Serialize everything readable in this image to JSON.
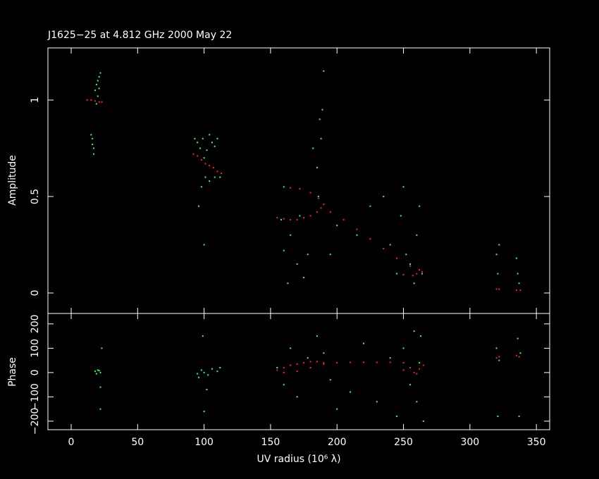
{
  "chart_data": [
    {
      "type": "scatter",
      "title": "J1625−25 at 4.812 GHz 2000 May 22",
      "ylabel": "Amplitude",
      "xlim": [
        -17.5,
        360
      ],
      "xticks": [
        0,
        50,
        100,
        150,
        200,
        250,
        300,
        350
      ],
      "ylim": [
        -0.106,
        1.27
      ],
      "yticks": [
        0,
        0.5,
        1
      ],
      "series": [
        {
          "color": "#33ff66",
          "x": [
            18,
            19,
            20,
            21,
            22,
            20,
            19,
            21,
            16,
            16,
            17,
            15,
            17,
            93,
            95,
            97,
            99,
            100,
            102,
            104,
            106,
            108,
            110,
            112,
            98,
            101,
            96,
            104,
            108,
            100,
            158,
            160,
            165,
            170,
            172,
            178,
            182,
            185,
            187,
            189,
            190,
            188,
            186,
            175,
            195,
            200,
            160,
            163,
            215,
            225,
            235,
            240,
            248,
            252,
            255,
            258,
            260,
            262,
            264,
            250,
            245,
            320,
            321,
            322,
            335,
            336,
            337
          ],
          "values": [
            1.05,
            1.08,
            1.1,
            1.12,
            1.14,
            1.02,
            0.98,
            1.06,
            0.8,
            0.77,
            0.75,
            0.82,
            0.72,
            0.8,
            0.78,
            0.75,
            0.8,
            0.7,
            0.74,
            0.82,
            0.78,
            0.76,
            0.8,
            0.6,
            0.55,
            0.6,
            0.45,
            0.58,
            0.6,
            0.25,
            0.38,
            0.22,
            0.3,
            0.15,
            0.4,
            0.2,
            0.75,
            0.65,
            0.9,
            0.95,
            1.15,
            0.8,
            0.5,
            0.08,
            0.2,
            0.35,
            0.55,
            0.05,
            0.3,
            0.45,
            0.5,
            0.25,
            0.4,
            0.2,
            0.15,
            0.05,
            0.3,
            0.45,
            0.1,
            0.55,
            0.1,
            0.2,
            0.1,
            0.25,
            0.18,
            0.1,
            0.05
          ]
        },
        {
          "color": "#ff2020",
          "x": [
            12,
            15,
            18,
            21,
            23,
            92,
            95,
            98,
            101,
            104,
            107,
            110,
            113,
            155,
            160,
            165,
            170,
            175,
            180,
            185,
            188,
            190,
            186,
            180,
            172,
            165,
            195,
            205,
            215,
            225,
            235,
            245,
            255,
            262,
            264,
            260,
            250,
            257,
            320,
            322,
            335,
            338
          ],
          "values": [
            1.0,
            1.0,
            0.995,
            0.99,
            0.99,
            0.72,
            0.71,
            0.69,
            0.67,
            0.66,
            0.65,
            0.63,
            0.62,
            0.39,
            0.385,
            0.38,
            0.38,
            0.39,
            0.4,
            0.42,
            0.44,
            0.46,
            0.49,
            0.52,
            0.54,
            0.545,
            0.42,
            0.38,
            0.33,
            0.28,
            0.23,
            0.18,
            0.14,
            0.12,
            0.11,
            0.1,
            0.095,
            0.09,
            0.02,
            0.02,
            0.015,
            0.015
          ]
        }
      ]
    },
    {
      "type": "scatter",
      "ylabel": "Phase",
      "xlabel": "UV radius  (10⁶ λ)",
      "xlim": [
        -17.5,
        360
      ],
      "xticks": [
        0,
        50,
        100,
        150,
        200,
        250,
        300,
        350
      ],
      "ylim": [
        -235,
        243
      ],
      "yticks": [
        {
          "value": -200,
          "label": "−200"
        },
        {
          "value": -100,
          "label": "−100"
        },
        0,
        100,
        200
      ],
      "series": [
        {
          "color": "#33ff66",
          "x": [
            18,
            20,
            22,
            21,
            19,
            23,
            22,
            22,
            95,
            98,
            100,
            103,
            106,
            110,
            112,
            96,
            99,
            100,
            102,
            155,
            160,
            165,
            170,
            178,
            185,
            190,
            195,
            200,
            210,
            220,
            230,
            240,
            245,
            250,
            255,
            258,
            260,
            262,
            265,
            263,
            320,
            321,
            322,
            336,
            337,
            338
          ],
          "values": [
            5,
            10,
            0,
            8,
            -5,
            100,
            -60,
            -150,
            -5,
            10,
            0,
            -10,
            15,
            5,
            20,
            -20,
            150,
            -160,
            -70,
            20,
            -50,
            100,
            -100,
            60,
            150,
            80,
            -30,
            -150,
            -80,
            120,
            -120,
            60,
            -180,
            100,
            -50,
            170,
            -120,
            40,
            -200,
            150,
            100,
            -180,
            50,
            140,
            -180,
            80
          ]
        },
        {
          "color": "#ff2020",
          "x": [
            155,
            160,
            165,
            170,
            175,
            180,
            185,
            190,
            160,
            170,
            180,
            190,
            200,
            210,
            220,
            230,
            240,
            250,
            255,
            258,
            260,
            262,
            265,
            250,
            320,
            322,
            335,
            337
          ],
          "values": [
            10,
            20,
            30,
            35,
            40,
            45,
            45,
            40,
            0,
            5,
            20,
            35,
            40,
            42,
            42,
            42,
            42,
            40,
            20,
            0,
            -5,
            15,
            30,
            10,
            60,
            65,
            70,
            65
          ]
        }
      ]
    }
  ]
}
